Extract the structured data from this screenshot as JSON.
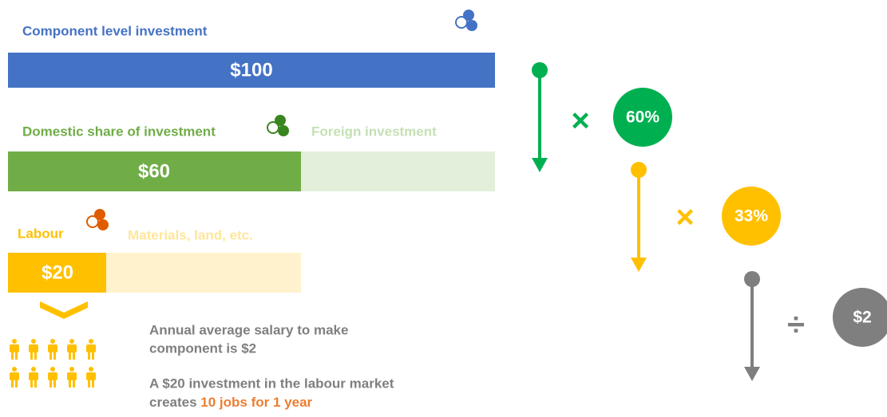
{
  "component": {
    "label": "Component level investment",
    "value": "$100"
  },
  "domestic": {
    "label": "Domestic share of investment",
    "value": "$60",
    "other": "Foreign investment"
  },
  "labour": {
    "label": "Labour",
    "value": "$20",
    "other": "Materials, land, etc."
  },
  "notes": {
    "line1": "Annual average salary to make",
    "line2": "component is $2",
    "line3": "A $20 investment in the labour market",
    "line4_prefix": "creates",
    "line4_highlight": "10 jobs for 1 year"
  },
  "steps": [
    {
      "operator": "×",
      "value": "60%"
    },
    {
      "operator": "×",
      "value": "33%"
    },
    {
      "operator": "÷",
      "value": "$2"
    }
  ]
}
